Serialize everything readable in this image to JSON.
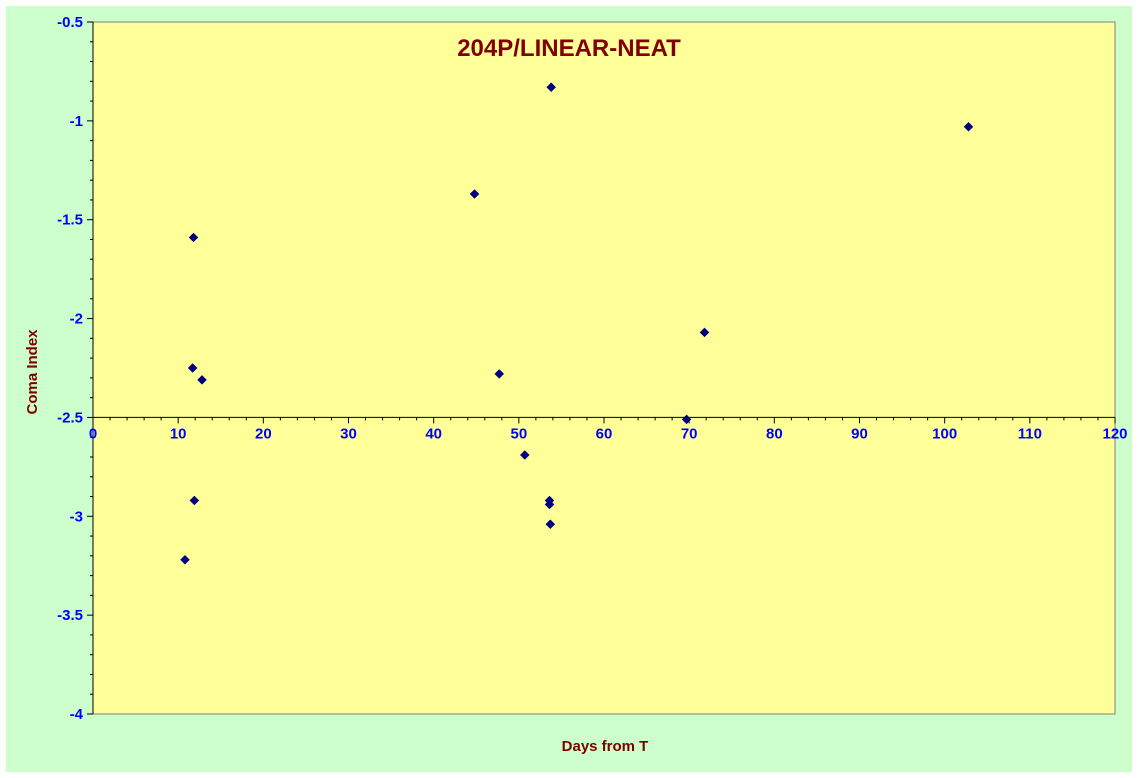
{
  "chart_data": {
    "type": "scatter",
    "title": "204P/LINEAR-NEAT",
    "xlabel": "Days from T",
    "ylabel": "Coma Index",
    "xlim": [
      0,
      120
    ],
    "ylim": [
      -4,
      -0.5
    ],
    "x_ticks": [
      0,
      10,
      20,
      30,
      40,
      50,
      60,
      70,
      80,
      90,
      100,
      110,
      120
    ],
    "y_ticks": [
      -0.5,
      -1,
      -1.5,
      -2,
      -2.5,
      -3,
      -3.5,
      -4
    ],
    "x_axis_crosses_at": -2.5,
    "grid": false,
    "legend": "none",
    "marker": "diamond",
    "colors": {
      "plot_background": "#ffff99",
      "chart_background": "#ccffcc",
      "marker": "#000080",
      "title": "#800000",
      "axis_title": "#800000",
      "tick_labels": "#0000ff",
      "axis_line": "#000000"
    },
    "series": [
      {
        "points": [
          {
            "x": 10.8,
            "y": -3.22
          },
          {
            "x": 11.7,
            "y": -2.25
          },
          {
            "x": 11.8,
            "y": -1.59
          },
          {
            "x": 11.9,
            "y": -2.92
          },
          {
            "x": 12.8,
            "y": -2.31
          },
          {
            "x": 44.8,
            "y": -1.37
          },
          {
            "x": 47.7,
            "y": -2.28
          },
          {
            "x": 50.7,
            "y": -2.69
          },
          {
            "x": 53.6,
            "y": -2.92
          },
          {
            "x": 53.6,
            "y": -2.94
          },
          {
            "x": 53.7,
            "y": -3.04
          },
          {
            "x": 53.8,
            "y": -0.83
          },
          {
            "x": 69.7,
            "y": -2.51
          },
          {
            "x": 71.8,
            "y": -2.07
          },
          {
            "x": 102.8,
            "y": -1.03
          }
        ]
      }
    ]
  }
}
